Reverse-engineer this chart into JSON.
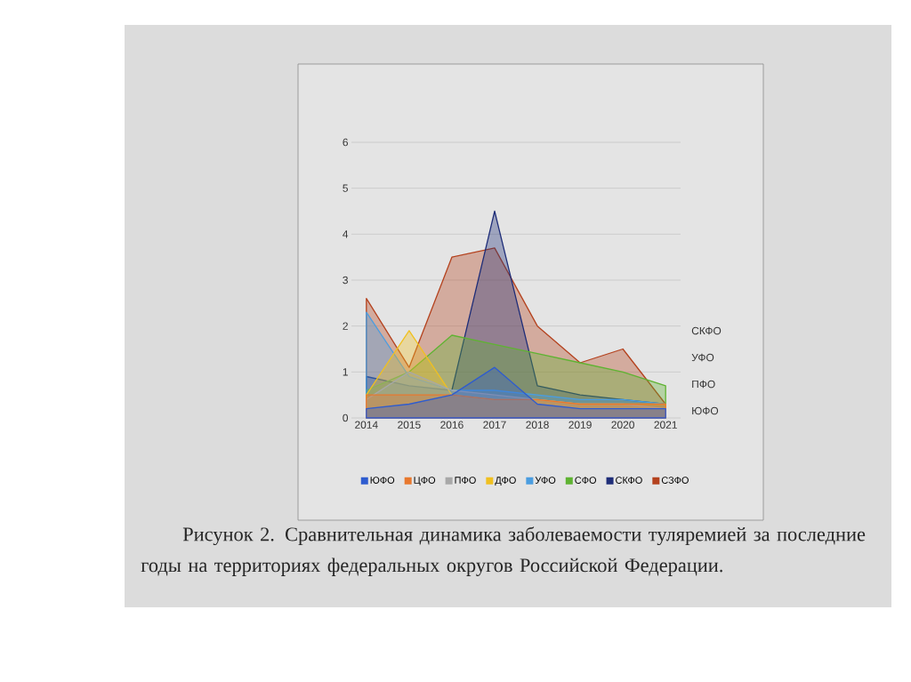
{
  "chart_data": {
    "type": "area",
    "categories": [
      "2014",
      "2015",
      "2016",
      "2017",
      "2018",
      "2019",
      "2020",
      "2021"
    ],
    "series": [
      {
        "name": "ЮФО",
        "color": "#2e5ccf",
        "values": [
          0.2,
          0.3,
          0.5,
          1.1,
          0.3,
          0.2,
          0.2,
          0.2
        ]
      },
      {
        "name": "ЦФО",
        "color": "#e8782e",
        "values": [
          0.5,
          0.5,
          0.5,
          0.4,
          0.4,
          0.3,
          0.3,
          0.3
        ]
      },
      {
        "name": "ПФО",
        "color": "#a8a8a8",
        "values": [
          0.4,
          1.0,
          0.6,
          0.5,
          0.4,
          0.3,
          0.3,
          0.2
        ]
      },
      {
        "name": "ДФО",
        "color": "#f0c020",
        "values": [
          0.5,
          1.9,
          0.5,
          0.4,
          0.4,
          0.3,
          0.3,
          0.3
        ]
      },
      {
        "name": "УФО",
        "color": "#4a9de0",
        "values": [
          2.3,
          0.9,
          0.6,
          0.6,
          0.5,
          0.4,
          0.4,
          0.3
        ]
      },
      {
        "name": "СФО",
        "color": "#5fb332",
        "values": [
          0.6,
          1.0,
          1.8,
          1.6,
          1.4,
          1.2,
          1.0,
          0.7
        ]
      },
      {
        "name": "СКФО",
        "color": "#1e2d78",
        "values": [
          0.9,
          0.7,
          0.6,
          4.5,
          0.7,
          0.5,
          0.4,
          0.3
        ]
      },
      {
        "name": "СЗФО",
        "color": "#b4421e",
        "values": [
          2.6,
          1.1,
          3.5,
          3.7,
          2.0,
          1.2,
          1.5,
          0.3
        ]
      }
    ],
    "ylim": [
      0,
      6
    ],
    "yticks": [
      0,
      1,
      2,
      3,
      4,
      5,
      6
    ],
    "grid": "y",
    "legend": "bottom",
    "annotations": [
      "Рисунок 2. Сравнительная динамика заболеваемости туляремией за последние годы на территориях федеральных округов Российской Федерации."
    ]
  }
}
